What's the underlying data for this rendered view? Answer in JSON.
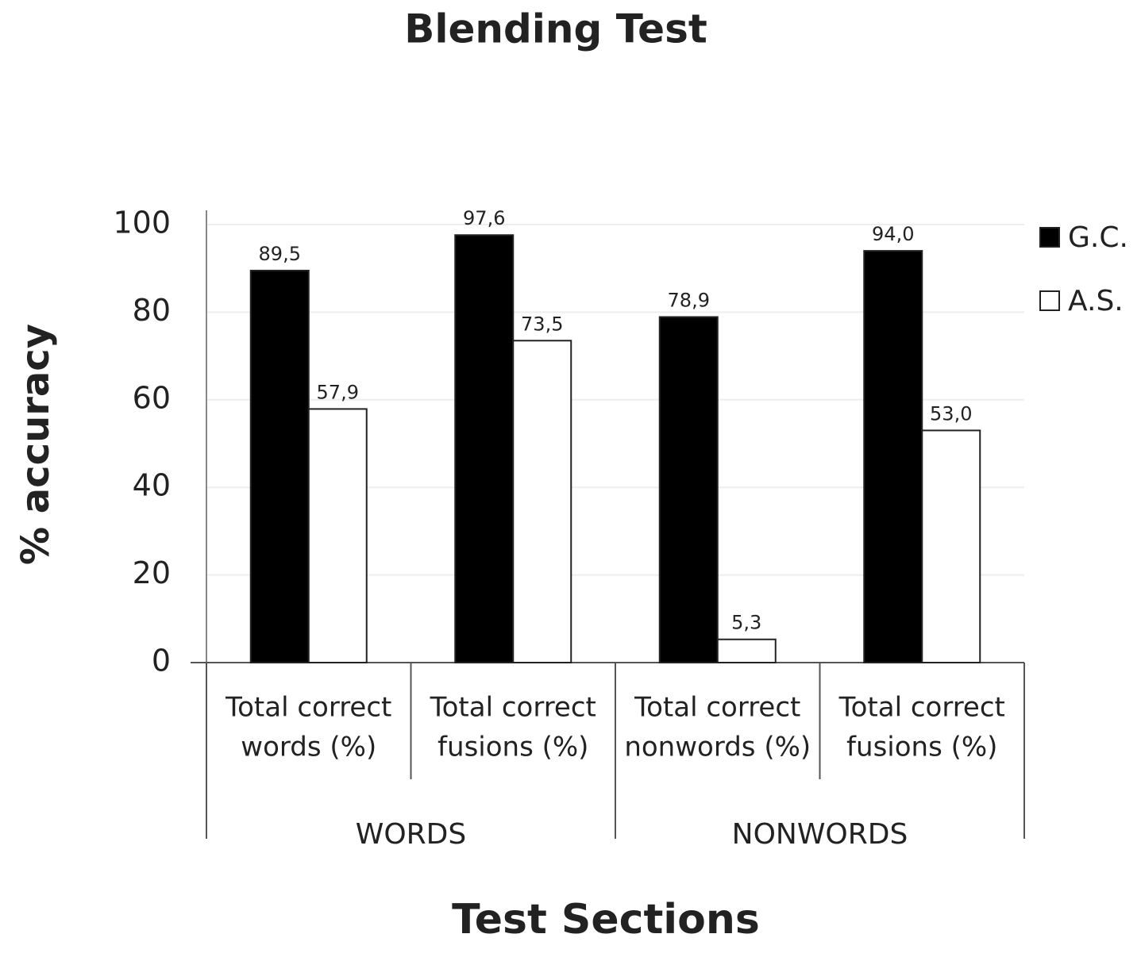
{
  "chart_data": {
    "type": "bar",
    "title": "Blending Test",
    "x_label": "Test Sections",
    "y_label": "% accuracy",
    "groups": [
      {
        "name": "WORDS",
        "categories": [
          [
            "Total correct",
            "words (%)"
          ],
          [
            "Total correct",
            "fusions (%)"
          ]
        ]
      },
      {
        "name": "NONWORDS",
        "categories": [
          [
            "Total correct",
            "nonwords (%)"
          ],
          [
            "Total correct",
            "fusions (%)"
          ]
        ]
      }
    ],
    "series": [
      {
        "name": "G.C.",
        "color": "#000000",
        "values": [
          89.5,
          97.6,
          78.9,
          94.0
        ],
        "value_labels": [
          "89,5",
          "97,6",
          "78,9",
          "94,0"
        ]
      },
      {
        "name": "A.S.",
        "color": "#ffffff",
        "values": [
          57.9,
          73.5,
          5.3,
          53.0
        ],
        "value_labels": [
          "57,9",
          "73,5",
          "5,3",
          "53,0"
        ]
      }
    ],
    "ylim": [
      0,
      100
    ],
    "yticks": [
      0,
      20,
      40,
      60,
      80,
      100
    ],
    "grid": true,
    "legend": "top-right"
  }
}
